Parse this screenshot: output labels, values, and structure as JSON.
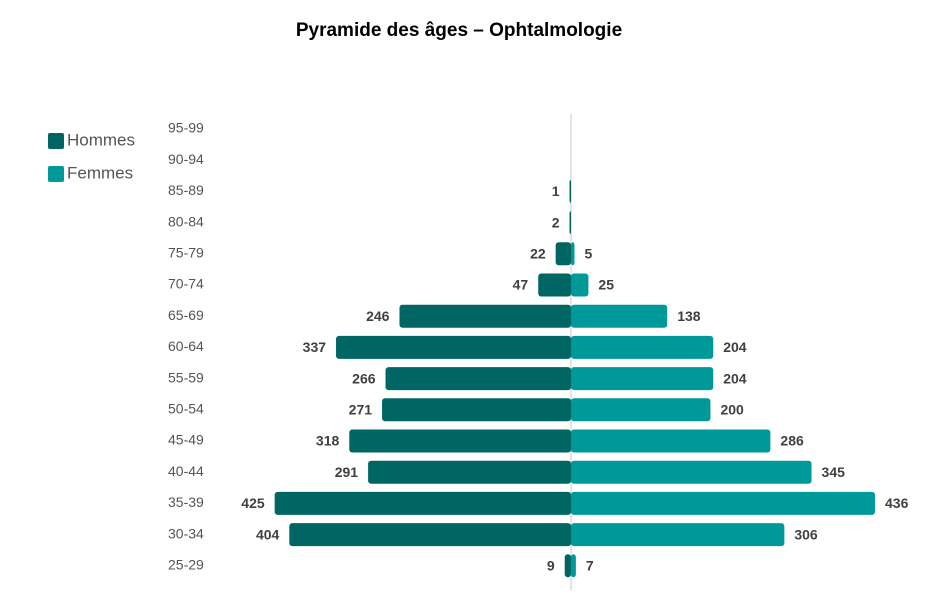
{
  "chart_data": {
    "type": "pyramid",
    "title": "Pyramide des âges – Ophtalmologie",
    "categories": [
      "95-99",
      "90-94",
      "85-89",
      "80-84",
      "75-79",
      "70-74",
      "65-69",
      "60-64",
      "55-59",
      "50-54",
      "45-49",
      "40-44",
      "35-39",
      "30-34",
      "25-29"
    ],
    "series": [
      {
        "name": "Hommes",
        "color": "#006664",
        "values": [
          null,
          null,
          1,
          2,
          22,
          47,
          246,
          337,
          266,
          271,
          318,
          291,
          425,
          404,
          9
        ]
      },
      {
        "name": "Femmes",
        "color": "#00999a",
        "values": [
          null,
          null,
          null,
          null,
          5,
          25,
          138,
          204,
          204,
          200,
          286,
          345,
          436,
          306,
          7
        ]
      }
    ],
    "legend": "top-left"
  }
}
